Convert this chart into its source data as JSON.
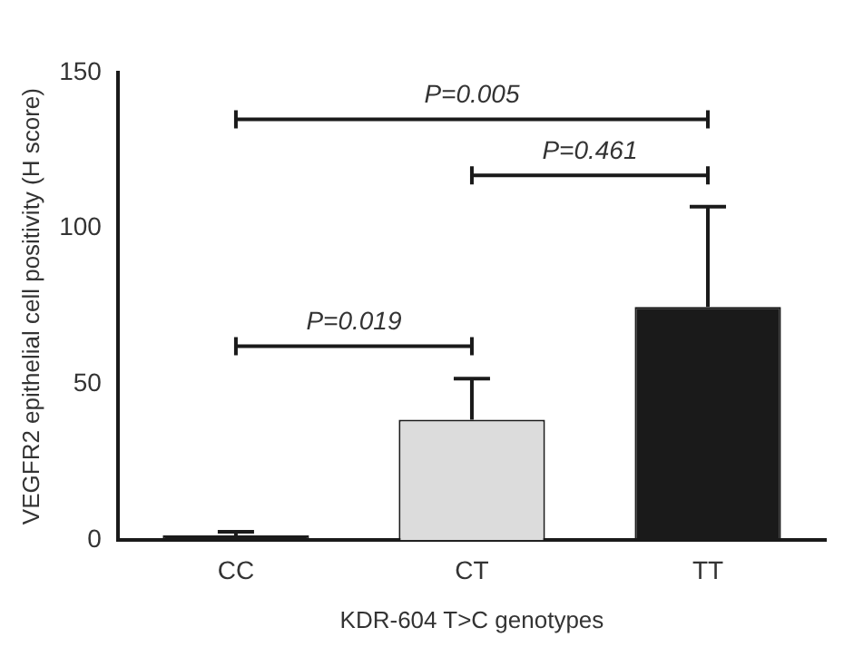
{
  "chart_data": {
    "type": "bar",
    "xlabel": "KDR-604 T>C genotypes",
    "ylabel": "VEGFR2 epithelial cell positivity (H score)",
    "categories": [
      "CC",
      "CT",
      "TT"
    ],
    "values": [
      1.5,
      38.6,
      74.8
    ],
    "colors": [
      "#1a1a1a",
      "#dcdcdc",
      "#1a1a1a"
    ],
    "errors": [
      [
        1.5,
        2.7
      ],
      [
        38.6,
        51.8
      ],
      [
        74.8,
        107
      ]
    ],
    "ylim": [
      0,
      150
    ],
    "yticks": [
      0,
      50,
      100,
      150
    ],
    "grid": false,
    "legend": false,
    "annotations": [
      "P=0.019",
      "P=0.461",
      "P=0.005"
    ]
  }
}
